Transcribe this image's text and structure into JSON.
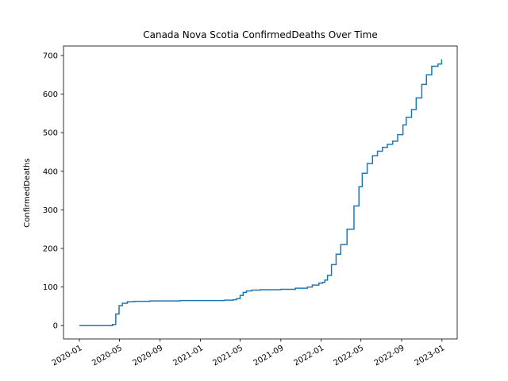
{
  "chart_data": {
    "type": "line",
    "title": "Canada Nova Scotia ConfirmedDeaths Over Time",
    "xlabel": "",
    "ylabel": "ConfirmedDeaths",
    "line_color": "#1f77b4",
    "ylim": [
      -34.5,
      724.5
    ],
    "xlim": [
      "2019-11-14",
      "2023-02-16"
    ],
    "yticks": [
      0,
      100,
      200,
      300,
      400,
      500,
      600,
      700
    ],
    "xticks": [
      "2020-01",
      "2020-05",
      "2020-09",
      "2021-01",
      "2021-05",
      "2021-09",
      "2022-01",
      "2022-05",
      "2022-09",
      "2023-01"
    ],
    "series": [
      {
        "name": "",
        "x": [
          "2020-01-01",
          "2020-03-20",
          "2020-04-10",
          "2020-04-20",
          "2020-04-30",
          "2020-05-10",
          "2020-05-25",
          "2020-06-15",
          "2020-08-01",
          "2020-11-01",
          "2021-02-01",
          "2021-03-15",
          "2021-04-10",
          "2021-04-20",
          "2021-05-01",
          "2021-05-10",
          "2021-05-20",
          "2021-06-05",
          "2021-07-01",
          "2021-09-01",
          "2021-10-15",
          "2021-11-20",
          "2021-12-05",
          "2021-12-25",
          "2022-01-05",
          "2022-01-12",
          "2022-01-20",
          "2022-02-01",
          "2022-02-15",
          "2022-03-01",
          "2022-03-20",
          "2022-04-10",
          "2022-04-25",
          "2022-05-05",
          "2022-05-20",
          "2022-06-05",
          "2022-06-20",
          "2022-07-05",
          "2022-07-20",
          "2022-08-05",
          "2022-08-20",
          "2022-09-05",
          "2022-09-15",
          "2022-10-01",
          "2022-10-15",
          "2022-11-01",
          "2022-11-15",
          "2022-12-01",
          "2022-12-20",
          "2022-12-31"
        ],
        "y": [
          0,
          0,
          3,
          30,
          52,
          58,
          62,
          63,
          64,
          65,
          65,
          66,
          67,
          70,
          78,
          86,
          90,
          92,
          93,
          94,
          97,
          100,
          105,
          110,
          112,
          118,
          130,
          158,
          185,
          210,
          250,
          310,
          360,
          395,
          420,
          440,
          452,
          462,
          470,
          478,
          495,
          520,
          540,
          560,
          590,
          625,
          650,
          672,
          678,
          690
        ]
      }
    ]
  }
}
